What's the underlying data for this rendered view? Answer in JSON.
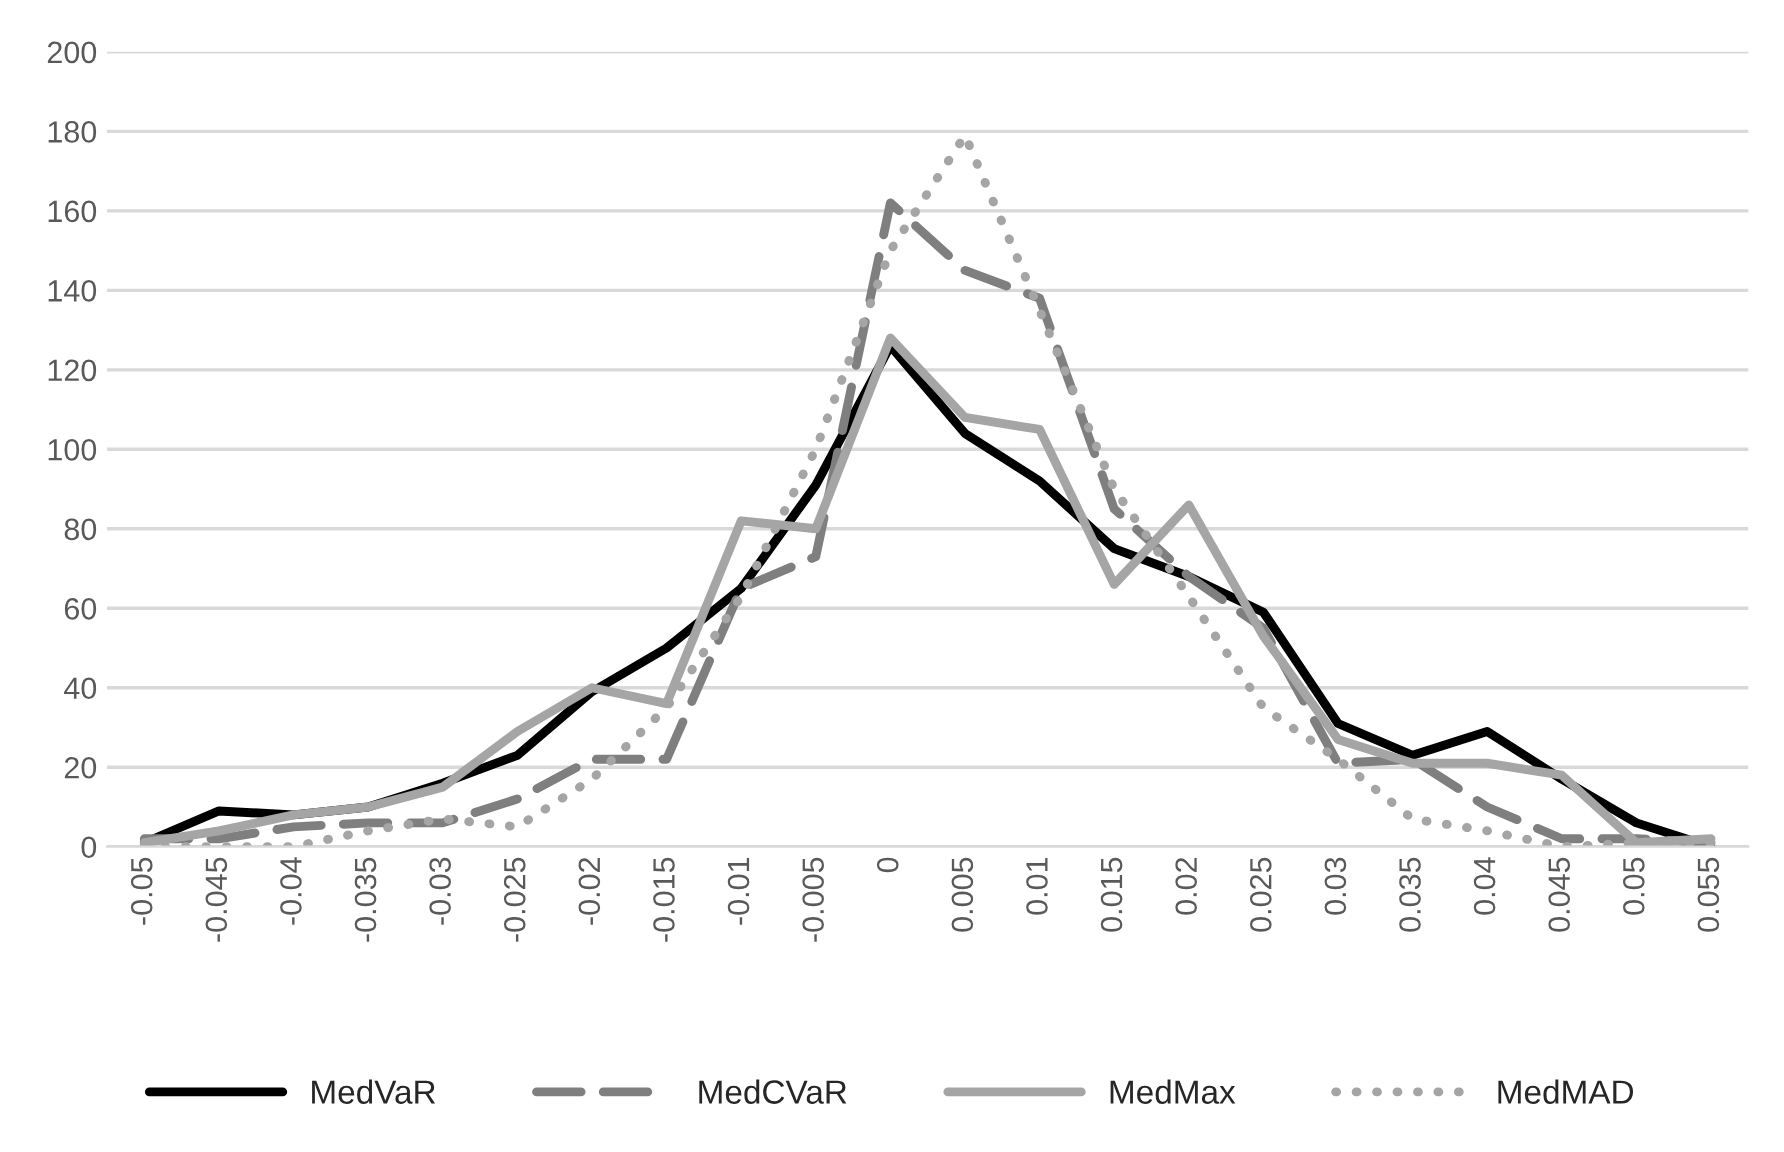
{
  "chart_data": {
    "type": "line",
    "categories": [
      "-0.05",
      "-0.045",
      "-0.04",
      "-0.035",
      "-0.03",
      "-0.025",
      "-0.02",
      "-0.015",
      "-0.01",
      "-0.005",
      "0",
      "0.005",
      "0.01",
      "0.015",
      "0.02",
      "0.025",
      "0.03",
      "0.035",
      "0.04",
      "0.045",
      "0.05",
      "0.055"
    ],
    "series": [
      {
        "name": "MedVaR",
        "color": "#000000",
        "line_style": "solid",
        "values": [
          1,
          9,
          8,
          10,
          16,
          23,
          39,
          50,
          65,
          91,
          126,
          104,
          92,
          75,
          68,
          59,
          31,
          23,
          29,
          17,
          6,
          0
        ]
      },
      {
        "name": "MedCVaR",
        "color": "#7f7f7f",
        "line_style": "dashed",
        "values": [
          2,
          2,
          5,
          6,
          6,
          12,
          22,
          22,
          65,
          73,
          162,
          145,
          138,
          85,
          68,
          55,
          21,
          22,
          10,
          2,
          2,
          1
        ]
      },
      {
        "name": "MedMax",
        "color": "#a5a5a5",
        "line_style": "solid",
        "values": [
          1,
          4,
          8,
          10,
          15,
          29,
          40,
          36,
          82,
          80,
          128,
          108,
          105,
          66,
          86,
          53,
          27,
          21,
          21,
          18,
          1,
          2
        ]
      },
      {
        "name": "MedMAD",
        "color": "#a5a5a5",
        "line_style": "dotted",
        "values": [
          0,
          0,
          0,
          4,
          7,
          5,
          17,
          35,
          63,
          100,
          150,
          179,
          135,
          90,
          63,
          35,
          22,
          7,
          4,
          0,
          1,
          1
        ]
      }
    ],
    "ylim": [
      0,
      200
    ],
    "yticks": [
      0,
      20,
      40,
      60,
      80,
      100,
      120,
      140,
      160,
      180,
      200
    ],
    "grid": "y",
    "legend": "bottom"
  }
}
